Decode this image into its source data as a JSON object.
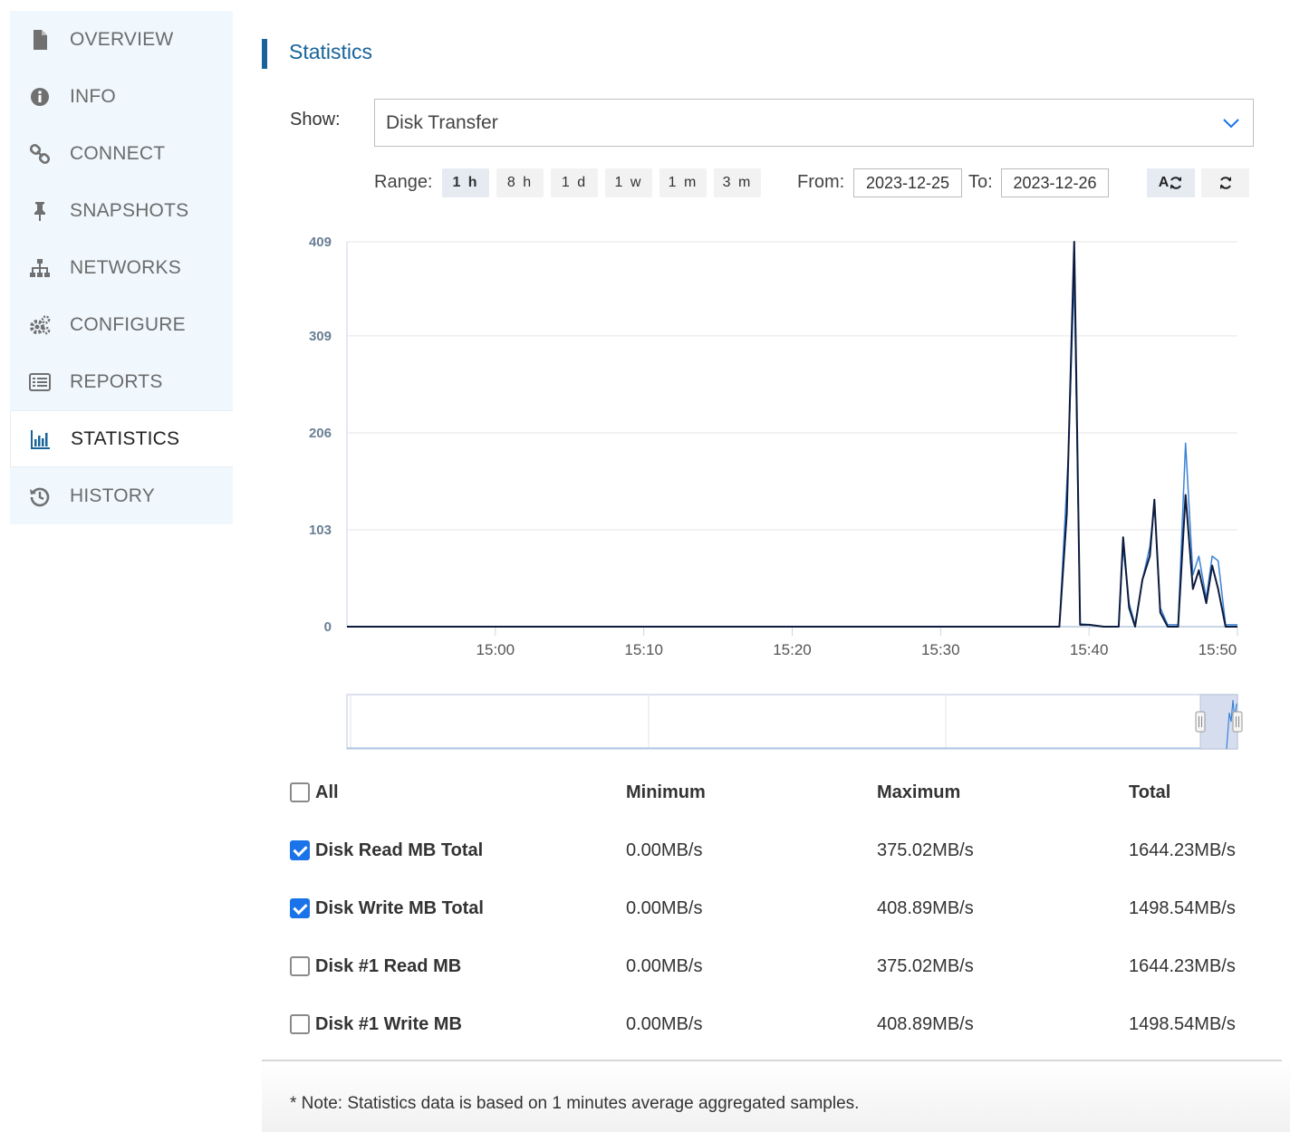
{
  "sidebar": {
    "items": [
      {
        "label": "OVERVIEW",
        "icon": "document-icon"
      },
      {
        "label": "INFO",
        "icon": "info-icon"
      },
      {
        "label": "CONNECT",
        "icon": "link-icon"
      },
      {
        "label": "SNAPSHOTS",
        "icon": "pin-icon"
      },
      {
        "label": "NETWORKS",
        "icon": "network-icon"
      },
      {
        "label": "CONFIGURE",
        "icon": "gears-icon"
      },
      {
        "label": "REPORTS",
        "icon": "list-icon"
      },
      {
        "label": "STATISTICS",
        "icon": "bar-chart-icon",
        "active": true
      },
      {
        "label": "HISTORY",
        "icon": "history-icon"
      }
    ]
  },
  "page": {
    "title": "Statistics"
  },
  "controls": {
    "show_label": "Show:",
    "show_value": "Disk Transfer",
    "range_label": "Range:",
    "ranges": [
      "1 h",
      "8 h",
      "1 d",
      "1 w",
      "1 m",
      "3 m"
    ],
    "selected_range": "1 h",
    "from_label": "From:",
    "from_value": "2023-12-25",
    "to_label": "To:",
    "to_value": "2023-12-26",
    "auto_refresh_label": "A",
    "auto_refresh_active": true
  },
  "colors": {
    "accent": "#17639a",
    "series_read": "#3b82d6",
    "series_write": "#0d1b3e",
    "checkbox": "#1a73e8"
  },
  "chart_data": {
    "type": "line",
    "yticks": [
      0,
      103,
      206,
      309,
      409
    ],
    "ylim": [
      0,
      409
    ],
    "xticks": [
      "15:00",
      "15:10",
      "15:20",
      "15:30",
      "15:40",
      "15:50"
    ],
    "xlim_minutes": [
      -10.0,
      50.0
    ],
    "grid": true,
    "series": [
      {
        "name": "Disk Read MB Total",
        "color": "#3b82d6",
        "points": [
          [
            -10,
            0
          ],
          [
            38,
            0
          ],
          [
            38.6,
            180
          ],
          [
            39,
            375
          ],
          [
            39.4,
            3
          ],
          [
            40,
            2
          ],
          [
            41,
            0
          ],
          [
            42,
            0
          ],
          [
            42.3,
            85
          ],
          [
            42.7,
            25
          ],
          [
            43.1,
            2
          ],
          [
            43.6,
            50
          ],
          [
            44.1,
            85
          ],
          [
            44.4,
            130
          ],
          [
            44.8,
            20
          ],
          [
            45.3,
            2
          ],
          [
            46,
            2
          ],
          [
            46.5,
            195
          ],
          [
            47,
            55
          ],
          [
            47.4,
            75
          ],
          [
            47.9,
            30
          ],
          [
            48.3,
            75
          ],
          [
            48.7,
            70
          ],
          [
            49.2,
            2
          ],
          [
            50,
            2
          ]
        ]
      },
      {
        "name": "Disk Write MB Total",
        "color": "#0d1b3e",
        "points": [
          [
            -10,
            0
          ],
          [
            38,
            0
          ],
          [
            38.5,
            120
          ],
          [
            39,
            409
          ],
          [
            39.4,
            2
          ],
          [
            40,
            2
          ],
          [
            41,
            0
          ],
          [
            42,
            0
          ],
          [
            42.3,
            95
          ],
          [
            42.7,
            20
          ],
          [
            43.1,
            0
          ],
          [
            43.6,
            50
          ],
          [
            44.1,
            75
          ],
          [
            44.4,
            135
          ],
          [
            44.8,
            15
          ],
          [
            45.3,
            0
          ],
          [
            46,
            0
          ],
          [
            46.5,
            140
          ],
          [
            47,
            40
          ],
          [
            47.4,
            60
          ],
          [
            47.9,
            25
          ],
          [
            48.3,
            65
          ],
          [
            48.7,
            40
          ],
          [
            49.2,
            0
          ],
          [
            50,
            0
          ]
        ]
      }
    ]
  },
  "table": {
    "all_label": "All",
    "headers": [
      "Minimum",
      "Maximum",
      "Total"
    ],
    "rows": [
      {
        "name": "Disk Read MB Total",
        "checked": true,
        "min": "0.00MB/s",
        "max": "375.02MB/s",
        "total": "1644.23MB/s"
      },
      {
        "name": "Disk Write MB Total",
        "checked": true,
        "min": "0.00MB/s",
        "max": "408.89MB/s",
        "total": "1498.54MB/s"
      },
      {
        "name": "Disk #1 Read MB",
        "checked": false,
        "min": "0.00MB/s",
        "max": "375.02MB/s",
        "total": "1644.23MB/s"
      },
      {
        "name": "Disk #1 Write MB",
        "checked": false,
        "min": "0.00MB/s",
        "max": "408.89MB/s",
        "total": "1498.54MB/s"
      }
    ]
  },
  "footer": {
    "note": "* Note: Statistics data is based on 1 minutes average aggregated samples."
  }
}
